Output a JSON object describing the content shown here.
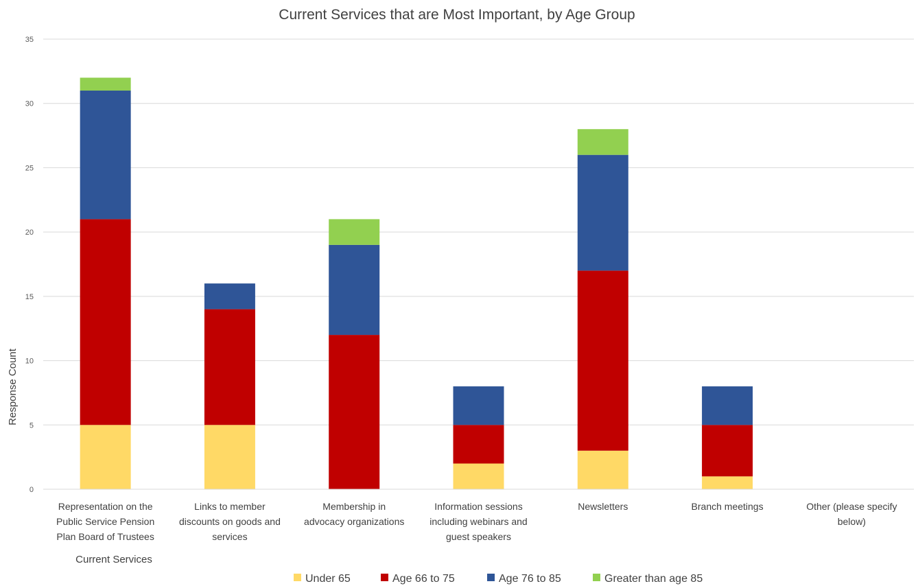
{
  "chart_data": {
    "type": "bar",
    "stacked": true,
    "title": "Current Services that are Most Important, by Age Group",
    "xlabel": "Current Services",
    "ylabel": "Response Count",
    "ylim": [
      0,
      35
    ],
    "yticks": [
      0,
      5,
      10,
      15,
      20,
      25,
      30,
      35
    ],
    "grid": true,
    "legend_position": "bottom",
    "categories": [
      [
        "Representation on the",
        "Public Service Pension",
        "Plan Board of Trustees"
      ],
      [
        "Links to member",
        "discounts on goods and",
        "services"
      ],
      [
        "Membership in",
        "advocacy organizations"
      ],
      [
        "Information sessions",
        "including webinars and",
        "guest speakers"
      ],
      [
        "Newsletters"
      ],
      [
        "Branch meetings"
      ],
      [
        "Other (please specify",
        "below)"
      ]
    ],
    "series": [
      {
        "name": "Under 65",
        "color": "#FFD966",
        "values": [
          5,
          5,
          0,
          2,
          3,
          1,
          0
        ]
      },
      {
        "name": "Age 66 to 75",
        "color": "#C00000",
        "values": [
          16,
          9,
          12,
          3,
          14,
          4,
          0
        ]
      },
      {
        "name": "Age 76 to 85",
        "color": "#2F5597",
        "values": [
          10,
          2,
          7,
          3,
          9,
          3,
          0
        ]
      },
      {
        "name": "Greater than age 85",
        "color": "#92D050",
        "values": [
          1,
          0,
          2,
          0,
          2,
          0,
          0
        ]
      }
    ]
  }
}
